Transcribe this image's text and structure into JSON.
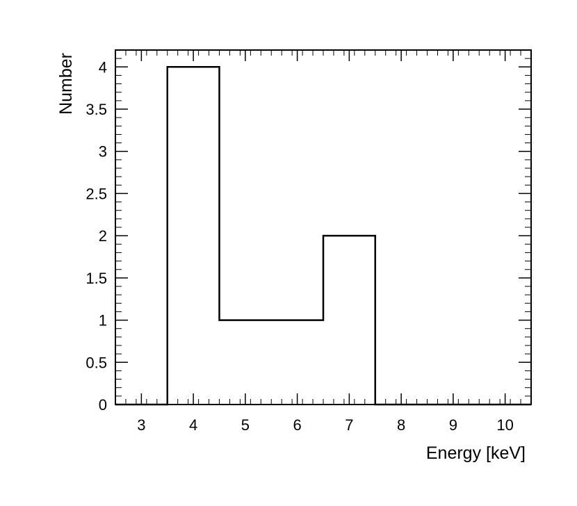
{
  "chart_data": {
    "type": "bar",
    "histogram": true,
    "x_bin_edges": [
      2.5,
      3.5,
      4.5,
      5.5,
      6.5,
      7.5,
      8.5,
      9.5,
      10.5
    ],
    "values": [
      0,
      4,
      1,
      1,
      2,
      0,
      0,
      0
    ],
    "xlabel": "Energy [keV]",
    "ylabel": "Number",
    "xlim": [
      2.5,
      10.5
    ],
    "ylim": [
      0,
      4.2
    ],
    "x_ticks": [
      3,
      4,
      5,
      6,
      7,
      8,
      9,
      10
    ],
    "x_tick_labels": [
      "3",
      "4",
      "5",
      "6",
      "7",
      "8",
      "9",
      "10"
    ],
    "y_ticks": [
      0,
      0.5,
      1,
      1.5,
      2,
      2.5,
      3,
      3.5,
      4
    ],
    "y_tick_labels": [
      "0",
      "0.5",
      "1",
      "1.5",
      "2",
      "2.5",
      "3",
      "3.5",
      "4"
    ],
    "grid": false,
    "legend": "none",
    "colors": {
      "line": "#000000",
      "background": "#ffffff"
    }
  }
}
